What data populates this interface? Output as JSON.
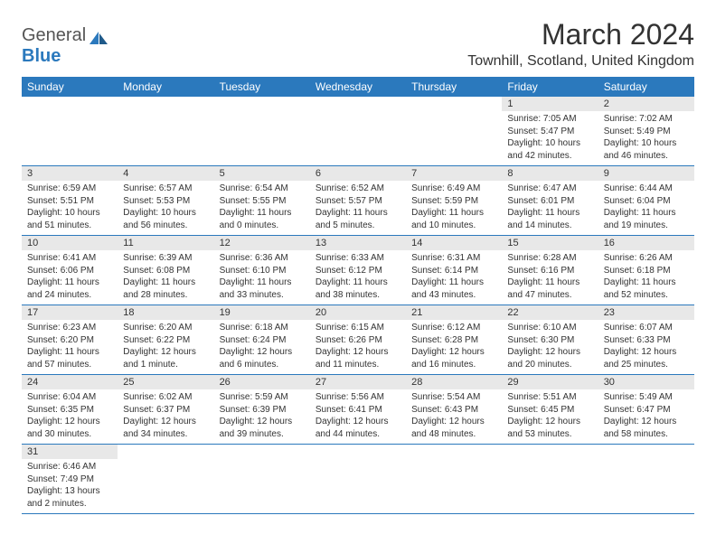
{
  "logo": {
    "text_gray": "General",
    "text_blue": "Blue"
  },
  "title": "March 2024",
  "location": "Townhill, Scotland, United Kingdom",
  "colors": {
    "header_bg": "#2b79bd",
    "header_text": "#ffffff",
    "daynum_bg": "#e8e8e8",
    "text": "#333333",
    "border": "#2b79bd"
  },
  "weekdays": [
    "Sunday",
    "Monday",
    "Tuesday",
    "Wednesday",
    "Thursday",
    "Friday",
    "Saturday"
  ],
  "weeks": [
    [
      null,
      null,
      null,
      null,
      null,
      {
        "d": "1",
        "sr": "Sunrise: 7:05 AM",
        "ss": "Sunset: 5:47 PM",
        "dl": "Daylight: 10 hours and 42 minutes."
      },
      {
        "d": "2",
        "sr": "Sunrise: 7:02 AM",
        "ss": "Sunset: 5:49 PM",
        "dl": "Daylight: 10 hours and 46 minutes."
      }
    ],
    [
      {
        "d": "3",
        "sr": "Sunrise: 6:59 AM",
        "ss": "Sunset: 5:51 PM",
        "dl": "Daylight: 10 hours and 51 minutes."
      },
      {
        "d": "4",
        "sr": "Sunrise: 6:57 AM",
        "ss": "Sunset: 5:53 PM",
        "dl": "Daylight: 10 hours and 56 minutes."
      },
      {
        "d": "5",
        "sr": "Sunrise: 6:54 AM",
        "ss": "Sunset: 5:55 PM",
        "dl": "Daylight: 11 hours and 0 minutes."
      },
      {
        "d": "6",
        "sr": "Sunrise: 6:52 AM",
        "ss": "Sunset: 5:57 PM",
        "dl": "Daylight: 11 hours and 5 minutes."
      },
      {
        "d": "7",
        "sr": "Sunrise: 6:49 AM",
        "ss": "Sunset: 5:59 PM",
        "dl": "Daylight: 11 hours and 10 minutes."
      },
      {
        "d": "8",
        "sr": "Sunrise: 6:47 AM",
        "ss": "Sunset: 6:01 PM",
        "dl": "Daylight: 11 hours and 14 minutes."
      },
      {
        "d": "9",
        "sr": "Sunrise: 6:44 AM",
        "ss": "Sunset: 6:04 PM",
        "dl": "Daylight: 11 hours and 19 minutes."
      }
    ],
    [
      {
        "d": "10",
        "sr": "Sunrise: 6:41 AM",
        "ss": "Sunset: 6:06 PM",
        "dl": "Daylight: 11 hours and 24 minutes."
      },
      {
        "d": "11",
        "sr": "Sunrise: 6:39 AM",
        "ss": "Sunset: 6:08 PM",
        "dl": "Daylight: 11 hours and 28 minutes."
      },
      {
        "d": "12",
        "sr": "Sunrise: 6:36 AM",
        "ss": "Sunset: 6:10 PM",
        "dl": "Daylight: 11 hours and 33 minutes."
      },
      {
        "d": "13",
        "sr": "Sunrise: 6:33 AM",
        "ss": "Sunset: 6:12 PM",
        "dl": "Daylight: 11 hours and 38 minutes."
      },
      {
        "d": "14",
        "sr": "Sunrise: 6:31 AM",
        "ss": "Sunset: 6:14 PM",
        "dl": "Daylight: 11 hours and 43 minutes."
      },
      {
        "d": "15",
        "sr": "Sunrise: 6:28 AM",
        "ss": "Sunset: 6:16 PM",
        "dl": "Daylight: 11 hours and 47 minutes."
      },
      {
        "d": "16",
        "sr": "Sunrise: 6:26 AM",
        "ss": "Sunset: 6:18 PM",
        "dl": "Daylight: 11 hours and 52 minutes."
      }
    ],
    [
      {
        "d": "17",
        "sr": "Sunrise: 6:23 AM",
        "ss": "Sunset: 6:20 PM",
        "dl": "Daylight: 11 hours and 57 minutes."
      },
      {
        "d": "18",
        "sr": "Sunrise: 6:20 AM",
        "ss": "Sunset: 6:22 PM",
        "dl": "Daylight: 12 hours and 1 minute."
      },
      {
        "d": "19",
        "sr": "Sunrise: 6:18 AM",
        "ss": "Sunset: 6:24 PM",
        "dl": "Daylight: 12 hours and 6 minutes."
      },
      {
        "d": "20",
        "sr": "Sunrise: 6:15 AM",
        "ss": "Sunset: 6:26 PM",
        "dl": "Daylight: 12 hours and 11 minutes."
      },
      {
        "d": "21",
        "sr": "Sunrise: 6:12 AM",
        "ss": "Sunset: 6:28 PM",
        "dl": "Daylight: 12 hours and 16 minutes."
      },
      {
        "d": "22",
        "sr": "Sunrise: 6:10 AM",
        "ss": "Sunset: 6:30 PM",
        "dl": "Daylight: 12 hours and 20 minutes."
      },
      {
        "d": "23",
        "sr": "Sunrise: 6:07 AM",
        "ss": "Sunset: 6:33 PM",
        "dl": "Daylight: 12 hours and 25 minutes."
      }
    ],
    [
      {
        "d": "24",
        "sr": "Sunrise: 6:04 AM",
        "ss": "Sunset: 6:35 PM",
        "dl": "Daylight: 12 hours and 30 minutes."
      },
      {
        "d": "25",
        "sr": "Sunrise: 6:02 AM",
        "ss": "Sunset: 6:37 PM",
        "dl": "Daylight: 12 hours and 34 minutes."
      },
      {
        "d": "26",
        "sr": "Sunrise: 5:59 AM",
        "ss": "Sunset: 6:39 PM",
        "dl": "Daylight: 12 hours and 39 minutes."
      },
      {
        "d": "27",
        "sr": "Sunrise: 5:56 AM",
        "ss": "Sunset: 6:41 PM",
        "dl": "Daylight: 12 hours and 44 minutes."
      },
      {
        "d": "28",
        "sr": "Sunrise: 5:54 AM",
        "ss": "Sunset: 6:43 PM",
        "dl": "Daylight: 12 hours and 48 minutes."
      },
      {
        "d": "29",
        "sr": "Sunrise: 5:51 AM",
        "ss": "Sunset: 6:45 PM",
        "dl": "Daylight: 12 hours and 53 minutes."
      },
      {
        "d": "30",
        "sr": "Sunrise: 5:49 AM",
        "ss": "Sunset: 6:47 PM",
        "dl": "Daylight: 12 hours and 58 minutes."
      }
    ],
    [
      {
        "d": "31",
        "sr": "Sunrise: 6:46 AM",
        "ss": "Sunset: 7:49 PM",
        "dl": "Daylight: 13 hours and 2 minutes."
      },
      null,
      null,
      null,
      null,
      null,
      null
    ]
  ]
}
